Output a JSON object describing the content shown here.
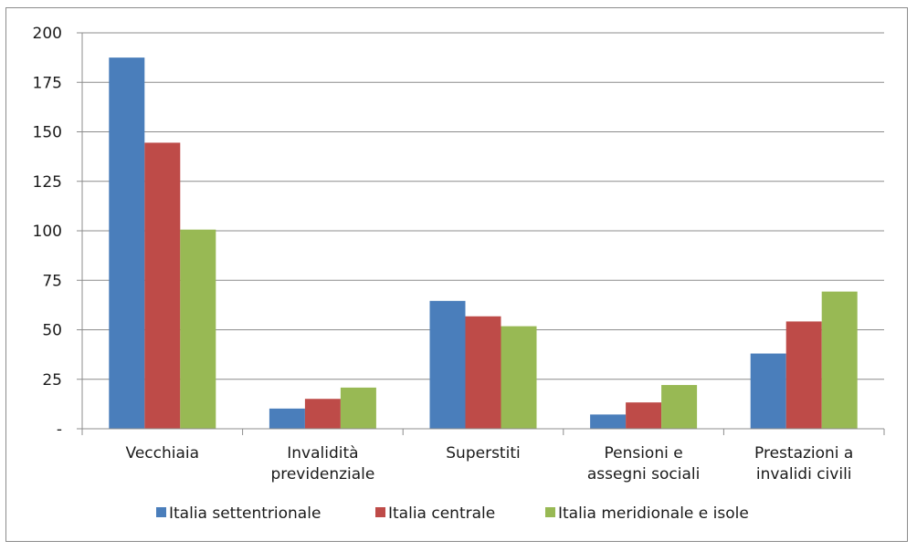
{
  "chart_data": {
    "type": "bar",
    "categories": [
      [
        "Vecchiaia"
      ],
      [
        "Invalidità",
        "previdenziale"
      ],
      [
        "Superstiti"
      ],
      [
        "Pensioni e",
        "assegni sociali"
      ],
      [
        "Prestazioni a",
        "invalidi civili"
      ]
    ],
    "series": [
      {
        "name": "Italia settentrionale",
        "color": "#4a7ebb",
        "values": [
          187.5,
          10.2,
          64.6,
          7.2,
          38.0
        ]
      },
      {
        "name": "Italia centrale",
        "color": "#be4b48",
        "values": [
          144.5,
          15.1,
          56.8,
          13.3,
          54.2
        ]
      },
      {
        "name": "Italia meridionale e isole",
        "color": "#98b954",
        "values": [
          100.6,
          20.8,
          51.8,
          22.1,
          69.3
        ]
      }
    ],
    "y_ticks": [
      "-",
      "25",
      "50",
      "75",
      "100",
      "125",
      "150",
      "175",
      "200"
    ],
    "ylim": [
      0,
      200
    ],
    "grid": true,
    "legend_position": "bottom"
  }
}
